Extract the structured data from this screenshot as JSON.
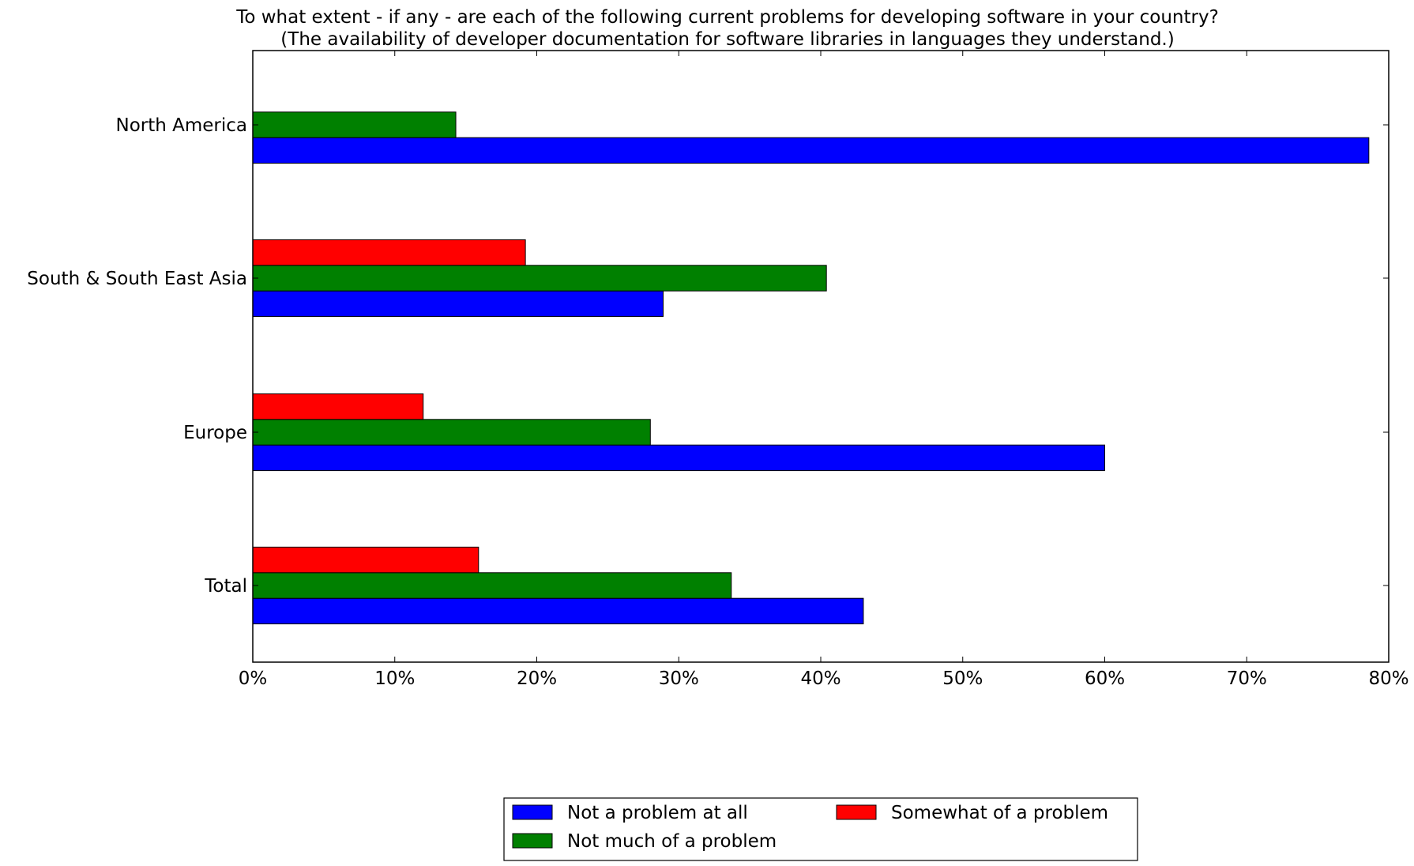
{
  "chart_data": {
    "type": "bar",
    "orientation": "horizontal",
    "title": "To what extent - if any - are each of the following current problems for developing software in your country?",
    "subtitle": "(The availability of developer documentation for software libraries in languages they understand.)",
    "xlabel": "",
    "ylabel": "",
    "xlim": [
      0,
      80
    ],
    "x_tick_labels": [
      "0%",
      "10%",
      "20%",
      "30%",
      "40%",
      "50%",
      "60%",
      "70%",
      "80%"
    ],
    "categories": [
      "North America",
      "South & South East Asia",
      "Europe",
      "Total"
    ],
    "series": [
      {
        "name": "Not a problem at all",
        "color": "#0000ff",
        "values": [
          78.6,
          28.9,
          60.0,
          43.0
        ]
      },
      {
        "name": "Not much of a problem",
        "color": "#008000",
        "values": [
          14.3,
          40.4,
          28.0,
          33.7
        ]
      },
      {
        "name": "Somewhat of a problem",
        "color": "#ff0000",
        "values": [
          0,
          19.2,
          12.0,
          15.9
        ]
      }
    ],
    "grid": false,
    "legend_position": "bottom-center"
  }
}
